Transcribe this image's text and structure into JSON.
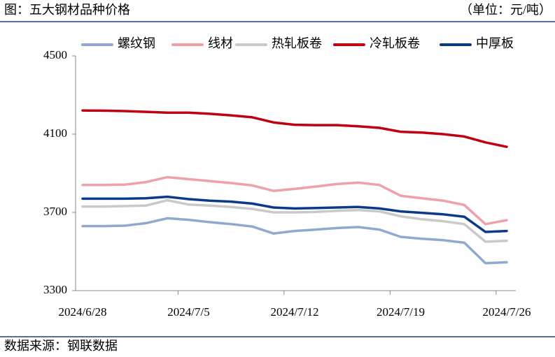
{
  "chart_data": {
    "type": "line",
    "title": "图：五大钢材品种价格",
    "subtitle": "（单位：元/吨）",
    "source": "数据来源：钢联数据",
    "categories": [
      "2024/6/28",
      null,
      null,
      null,
      null,
      "2024/7/5",
      null,
      null,
      null,
      null,
      "2024/7/12",
      null,
      null,
      null,
      null,
      "2024/7/19",
      null,
      null,
      null,
      null,
      "2024/7/26"
    ],
    "ylim": [
      3300,
      4500
    ],
    "yticks": [
      3300,
      3700,
      4100,
      4500
    ],
    "series": [
      {
        "name": "螺纹钢",
        "color": "#8fa9cf",
        "values": [
          3630,
          3630,
          3632,
          3645,
          3670,
          3662,
          3650,
          3640,
          3628,
          3592,
          3605,
          3612,
          3620,
          3625,
          3612,
          3575,
          3565,
          3558,
          3545,
          3440,
          3445
        ]
      },
      {
        "name": "线材",
        "color": "#eea1aa",
        "values": [
          3840,
          3840,
          3842,
          3855,
          3880,
          3870,
          3860,
          3850,
          3838,
          3810,
          3820,
          3832,
          3845,
          3852,
          3840,
          3785,
          3772,
          3760,
          3738,
          3640,
          3660
        ]
      },
      {
        "name": "热轧板卷",
        "color": "#c9c9c9",
        "values": [
          3730,
          3730,
          3732,
          3735,
          3762,
          3740,
          3735,
          3728,
          3718,
          3700,
          3700,
          3702,
          3708,
          3712,
          3705,
          3680,
          3665,
          3655,
          3640,
          3550,
          3555
        ]
      },
      {
        "name": "冷轧板卷",
        "color": "#c00012",
        "values": [
          4221,
          4220,
          4218,
          4214,
          4210,
          4210,
          4204,
          4196,
          4186,
          4160,
          4148,
          4146,
          4146,
          4140,
          4132,
          4112,
          4108,
          4100,
          4088,
          4058,
          4035
        ]
      },
      {
        "name": "中厚板",
        "color": "#0b3a8a",
        "values": [
          3770,
          3770,
          3770,
          3772,
          3780,
          3768,
          3760,
          3755,
          3745,
          3725,
          3720,
          3722,
          3725,
          3728,
          3720,
          3705,
          3698,
          3690,
          3678,
          3600,
          3605
        ]
      }
    ]
  }
}
